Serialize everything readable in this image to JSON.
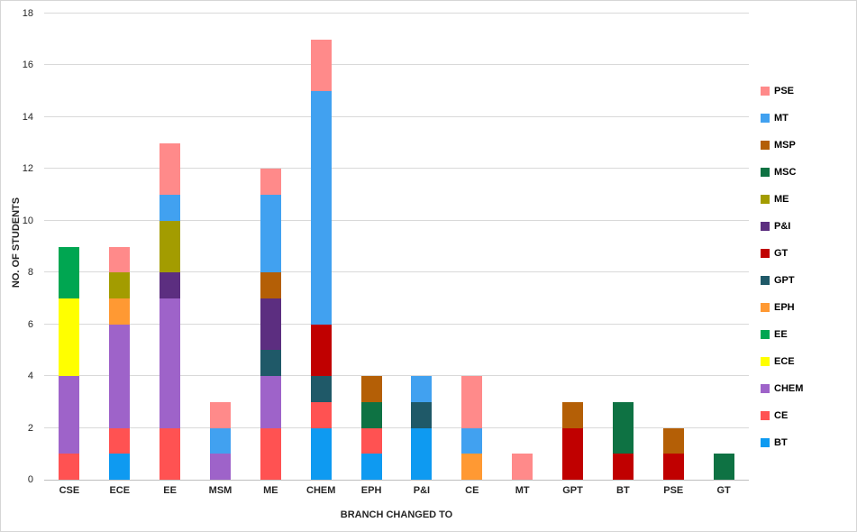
{
  "chart_data": {
    "type": "bar",
    "stacked": true,
    "title": "",
    "xlabel": "BRANCH CHANGED TO",
    "ylabel": "NO. OF STUDENTS",
    "ylim": [
      0,
      18
    ],
    "ytick_step": 2,
    "grid": true,
    "legend_position": "right",
    "categories": [
      "CSE",
      "ECE",
      "EE",
      "MSM",
      "ME",
      "CHEM",
      "EPH",
      "P&I",
      "CE",
      "MT",
      "GPT",
      "BT",
      "PSE",
      "GT"
    ],
    "series": [
      {
        "name": "BT",
        "color": "#0E9AF1",
        "values": [
          0,
          1,
          0,
          0,
          0,
          2,
          1,
          2,
          0,
          0,
          0,
          0,
          0,
          0
        ]
      },
      {
        "name": "CE",
        "color": "#FF5252",
        "values": [
          1,
          1,
          2,
          0,
          2,
          1,
          1,
          0,
          0,
          0,
          0,
          0,
          0,
          0
        ]
      },
      {
        "name": "CHEM",
        "color": "#9E63C9",
        "values": [
          3,
          4,
          5,
          1,
          2,
          0,
          0,
          0,
          0,
          0,
          0,
          0,
          0,
          0
        ]
      },
      {
        "name": "ECE",
        "color": "#FFFF00",
        "values": [
          3,
          0,
          0,
          0,
          0,
          0,
          0,
          0,
          0,
          0,
          0,
          0,
          0,
          0
        ]
      },
      {
        "name": "EE",
        "color": "#00A651",
        "values": [
          2,
          0,
          0,
          0,
          0,
          0,
          0,
          0,
          0,
          0,
          0,
          0,
          0,
          0
        ]
      },
      {
        "name": "EPH",
        "color": "#FF9933",
        "values": [
          0,
          1,
          0,
          0,
          0,
          0,
          0,
          0,
          1,
          0,
          0,
          0,
          0,
          0
        ]
      },
      {
        "name": "GPT",
        "color": "#1F5968",
        "values": [
          0,
          0,
          0,
          0,
          1,
          1,
          0,
          1,
          0,
          0,
          0,
          0,
          0,
          0
        ]
      },
      {
        "name": "GT",
        "color": "#C00000",
        "values": [
          0,
          0,
          0,
          0,
          0,
          2,
          0,
          0,
          0,
          0,
          2,
          1,
          1,
          0
        ]
      },
      {
        "name": "P&I",
        "color": "#5C2E80",
        "values": [
          0,
          0,
          1,
          0,
          2,
          0,
          0,
          0,
          0,
          0,
          0,
          0,
          0,
          0
        ]
      },
      {
        "name": "ME",
        "color": "#A39C00",
        "values": [
          0,
          1,
          2,
          0,
          0,
          0,
          0,
          0,
          0,
          0,
          0,
          0,
          0,
          0
        ]
      },
      {
        "name": "MSC",
        "color": "#0E7243",
        "values": [
          0,
          0,
          0,
          0,
          0,
          0,
          1,
          0,
          0,
          0,
          0,
          2,
          0,
          1
        ]
      },
      {
        "name": "MSP",
        "color": "#B45F06",
        "values": [
          0,
          0,
          0,
          0,
          1,
          0,
          1,
          0,
          0,
          0,
          1,
          0,
          1,
          0
        ]
      },
      {
        "name": "MT",
        "color": "#41A1F0",
        "values": [
          0,
          0,
          1,
          1,
          3,
          9,
          0,
          1,
          1,
          0,
          0,
          0,
          0,
          0
        ]
      },
      {
        "name": "PSE",
        "color": "#FF8A8A",
        "values": [
          0,
          1,
          2,
          1,
          1,
          2,
          0,
          0,
          2,
          1,
          0,
          0,
          0,
          0
        ]
      }
    ],
    "legend_order_top_to_bottom": [
      "PSE",
      "MT",
      "MSP",
      "MSC",
      "ME",
      "P&I",
      "GT",
      "GPT",
      "EPH",
      "EE",
      "ECE",
      "CHEM",
      "CE",
      "BT"
    ]
  }
}
